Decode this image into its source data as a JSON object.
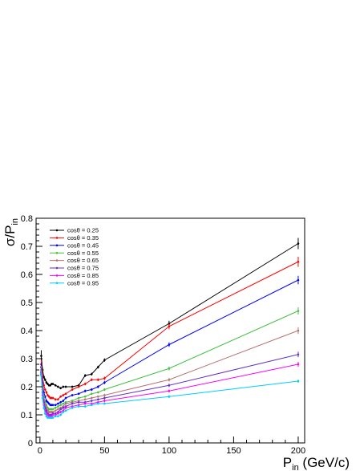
{
  "chart_data": {
    "type": "line",
    "title": "",
    "xlabel": {
      "main": "P",
      "sub": "in",
      "suffix": " (GeV/c)"
    },
    "ylabel": {
      "main": "σ/P",
      "sub": "in"
    },
    "xlim": [
      -3,
      205
    ],
    "ylim": [
      0,
      0.8
    ],
    "x_ticks": [
      0,
      50,
      100,
      150,
      200
    ],
    "y_ticks": [
      0,
      0.1,
      0.2,
      0.3,
      0.4,
      0.5,
      0.6,
      0.7,
      0.8
    ],
    "x_tick_labels": [
      "0",
      "50",
      "100",
      "150",
      "200"
    ],
    "y_tick_labels": [
      "0",
      "0.1",
      "0.2",
      "0.3",
      "0.4",
      "0.5",
      "0.6",
      "0.7",
      "0.8"
    ],
    "grid": false,
    "legend_position": "top-left",
    "series": [
      {
        "name": "cosθ = 0.25",
        "color": "#000000",
        "x": [
          1,
          2,
          3,
          4,
          5,
          6,
          7,
          8,
          9,
          10,
          12,
          14,
          16,
          18,
          20,
          25,
          30,
          35,
          40,
          45,
          50,
          100,
          200
        ],
        "y": [
          0.31,
          0.26,
          0.235,
          0.225,
          0.215,
          0.21,
          0.205,
          0.205,
          0.21,
          0.21,
          0.205,
          0.2,
          0.195,
          0.2,
          0.2,
          0.2,
          0.205,
          0.24,
          0.245,
          0.27,
          0.295,
          0.425,
          0.71
        ],
        "err": [
          0.02,
          0.008,
          0.006,
          0.005,
          0.005,
          0.004,
          0.004,
          0.004,
          0.004,
          0.004,
          0.004,
          0.004,
          0.004,
          0.004,
          0.004,
          0.004,
          0.004,
          0.005,
          0.005,
          0.005,
          0.006,
          0.01,
          0.02
        ]
      },
      {
        "name": "cosθ = 0.35",
        "color": "#ff0000",
        "x": [
          1,
          2,
          3,
          4,
          5,
          6,
          7,
          8,
          9,
          10,
          12,
          14,
          16,
          18,
          20,
          25,
          30,
          35,
          40,
          45,
          50,
          100,
          200
        ],
        "y": [
          0.28,
          0.235,
          0.205,
          0.19,
          0.18,
          0.17,
          0.165,
          0.16,
          0.16,
          0.16,
          0.155,
          0.155,
          0.165,
          0.17,
          0.175,
          0.19,
          0.2,
          0.21,
          0.225,
          0.225,
          0.23,
          0.415,
          0.645
        ],
        "err": [
          0.015,
          0.008,
          0.006,
          0.005,
          0.005,
          0.004,
          0.004,
          0.004,
          0.004,
          0.004,
          0.004,
          0.004,
          0.004,
          0.004,
          0.004,
          0.004,
          0.004,
          0.005,
          0.005,
          0.005,
          0.006,
          0.01,
          0.018
        ]
      },
      {
        "name": "cosθ = 0.45",
        "color": "#0000ff",
        "x": [
          1,
          2,
          3,
          4,
          5,
          6,
          7,
          8,
          9,
          10,
          12,
          14,
          16,
          18,
          20,
          25,
          30,
          35,
          40,
          45,
          50,
          100,
          200
        ],
        "y": [
          0.27,
          0.215,
          0.18,
          0.165,
          0.15,
          0.145,
          0.14,
          0.135,
          0.135,
          0.135,
          0.135,
          0.14,
          0.145,
          0.15,
          0.16,
          0.17,
          0.175,
          0.185,
          0.19,
          0.2,
          0.215,
          0.35,
          0.58
        ],
        "err": [
          0.015,
          0.008,
          0.006,
          0.005,
          0.005,
          0.004,
          0.004,
          0.004,
          0.004,
          0.004,
          0.004,
          0.004,
          0.004,
          0.004,
          0.004,
          0.004,
          0.004,
          0.005,
          0.005,
          0.005,
          0.006,
          0.008,
          0.015
        ]
      },
      {
        "name": "cosθ = 0.55",
        "color": "#44c044",
        "x": [
          1,
          2,
          3,
          4,
          5,
          6,
          7,
          8,
          9,
          10,
          12,
          14,
          16,
          18,
          20,
          25,
          30,
          35,
          40,
          45,
          50,
          100,
          200
        ],
        "y": [
          0.26,
          0.2,
          0.165,
          0.145,
          0.135,
          0.125,
          0.12,
          0.12,
          0.12,
          0.12,
          0.125,
          0.13,
          0.135,
          0.14,
          0.145,
          0.15,
          0.16,
          0.165,
          0.175,
          0.18,
          0.19,
          0.265,
          0.47
        ],
        "err": [
          0.015,
          0.008,
          0.006,
          0.005,
          0.005,
          0.004,
          0.004,
          0.004,
          0.004,
          0.004,
          0.004,
          0.004,
          0.004,
          0.004,
          0.004,
          0.004,
          0.004,
          0.004,
          0.004,
          0.004,
          0.005,
          0.007,
          0.013
        ]
      },
      {
        "name": "cosθ = 0.65",
        "color": "#b97070",
        "x": [
          1,
          2,
          3,
          4,
          5,
          6,
          7,
          8,
          9,
          10,
          12,
          14,
          16,
          18,
          20,
          25,
          30,
          35,
          40,
          45,
          50,
          100,
          200
        ],
        "y": [
          0.255,
          0.19,
          0.155,
          0.135,
          0.125,
          0.115,
          0.11,
          0.11,
          0.11,
          0.11,
          0.115,
          0.12,
          0.125,
          0.13,
          0.14,
          0.145,
          0.15,
          0.155,
          0.16,
          0.165,
          0.17,
          0.225,
          0.4
        ],
        "err": [
          0.015,
          0.008,
          0.006,
          0.005,
          0.005,
          0.004,
          0.004,
          0.004,
          0.004,
          0.004,
          0.004,
          0.004,
          0.004,
          0.004,
          0.004,
          0.004,
          0.004,
          0.004,
          0.004,
          0.004,
          0.005,
          0.006,
          0.012
        ]
      },
      {
        "name": "cosθ = 0.75",
        "color": "#6633cc",
        "x": [
          1,
          2,
          3,
          4,
          5,
          6,
          7,
          8,
          9,
          10,
          12,
          14,
          16,
          18,
          20,
          25,
          30,
          35,
          40,
          45,
          50,
          100,
          200
        ],
        "y": [
          0.25,
          0.18,
          0.145,
          0.125,
          0.115,
          0.105,
          0.1,
          0.1,
          0.1,
          0.105,
          0.105,
          0.11,
          0.12,
          0.125,
          0.13,
          0.14,
          0.145,
          0.145,
          0.15,
          0.155,
          0.16,
          0.205,
          0.315
        ],
        "err": [
          0.015,
          0.008,
          0.006,
          0.005,
          0.005,
          0.004,
          0.004,
          0.004,
          0.004,
          0.004,
          0.004,
          0.004,
          0.004,
          0.004,
          0.004,
          0.004,
          0.004,
          0.004,
          0.004,
          0.004,
          0.005,
          0.006,
          0.01
        ]
      },
      {
        "name": "cosθ = 0.85",
        "color": "#ff00ff",
        "x": [
          1,
          2,
          3,
          4,
          5,
          6,
          7,
          8,
          9,
          10,
          12,
          14,
          16,
          18,
          20,
          25,
          30,
          35,
          40,
          45,
          50,
          100,
          200
        ],
        "y": [
          0.245,
          0.17,
          0.135,
          0.115,
          0.105,
          0.1,
          0.095,
          0.095,
          0.095,
          0.1,
          0.1,
          0.105,
          0.11,
          0.115,
          0.125,
          0.13,
          0.135,
          0.14,
          0.14,
          0.145,
          0.15,
          0.185,
          0.28
        ],
        "err": [
          0.015,
          0.008,
          0.006,
          0.005,
          0.005,
          0.004,
          0.004,
          0.004,
          0.004,
          0.004,
          0.004,
          0.004,
          0.004,
          0.004,
          0.004,
          0.004,
          0.004,
          0.004,
          0.004,
          0.004,
          0.005,
          0.005,
          0.009
        ]
      },
      {
        "name": "cosθ = 0.95",
        "color": "#00ccff",
        "x": [
          1,
          2,
          3,
          4,
          5,
          6,
          7,
          8,
          9,
          10,
          12,
          14,
          16,
          18,
          20,
          25,
          30,
          35,
          40,
          45,
          50,
          100,
          200
        ],
        "y": [
          0.24,
          0.16,
          0.125,
          0.105,
          0.095,
          0.09,
          0.09,
          0.09,
          0.09,
          0.09,
          0.095,
          0.095,
          0.1,
          0.11,
          0.115,
          0.125,
          0.13,
          0.13,
          0.135,
          0.14,
          0.14,
          0.165,
          0.22
        ],
        "err": [
          0.015,
          0.008,
          0.006,
          0.005,
          0.005,
          0.004,
          0.004,
          0.004,
          0.004,
          0.004,
          0.004,
          0.004,
          0.004,
          0.004,
          0.004,
          0.004,
          0.004,
          0.004,
          0.004,
          0.004,
          0.004,
          0.005,
          0.006
        ]
      }
    ]
  }
}
